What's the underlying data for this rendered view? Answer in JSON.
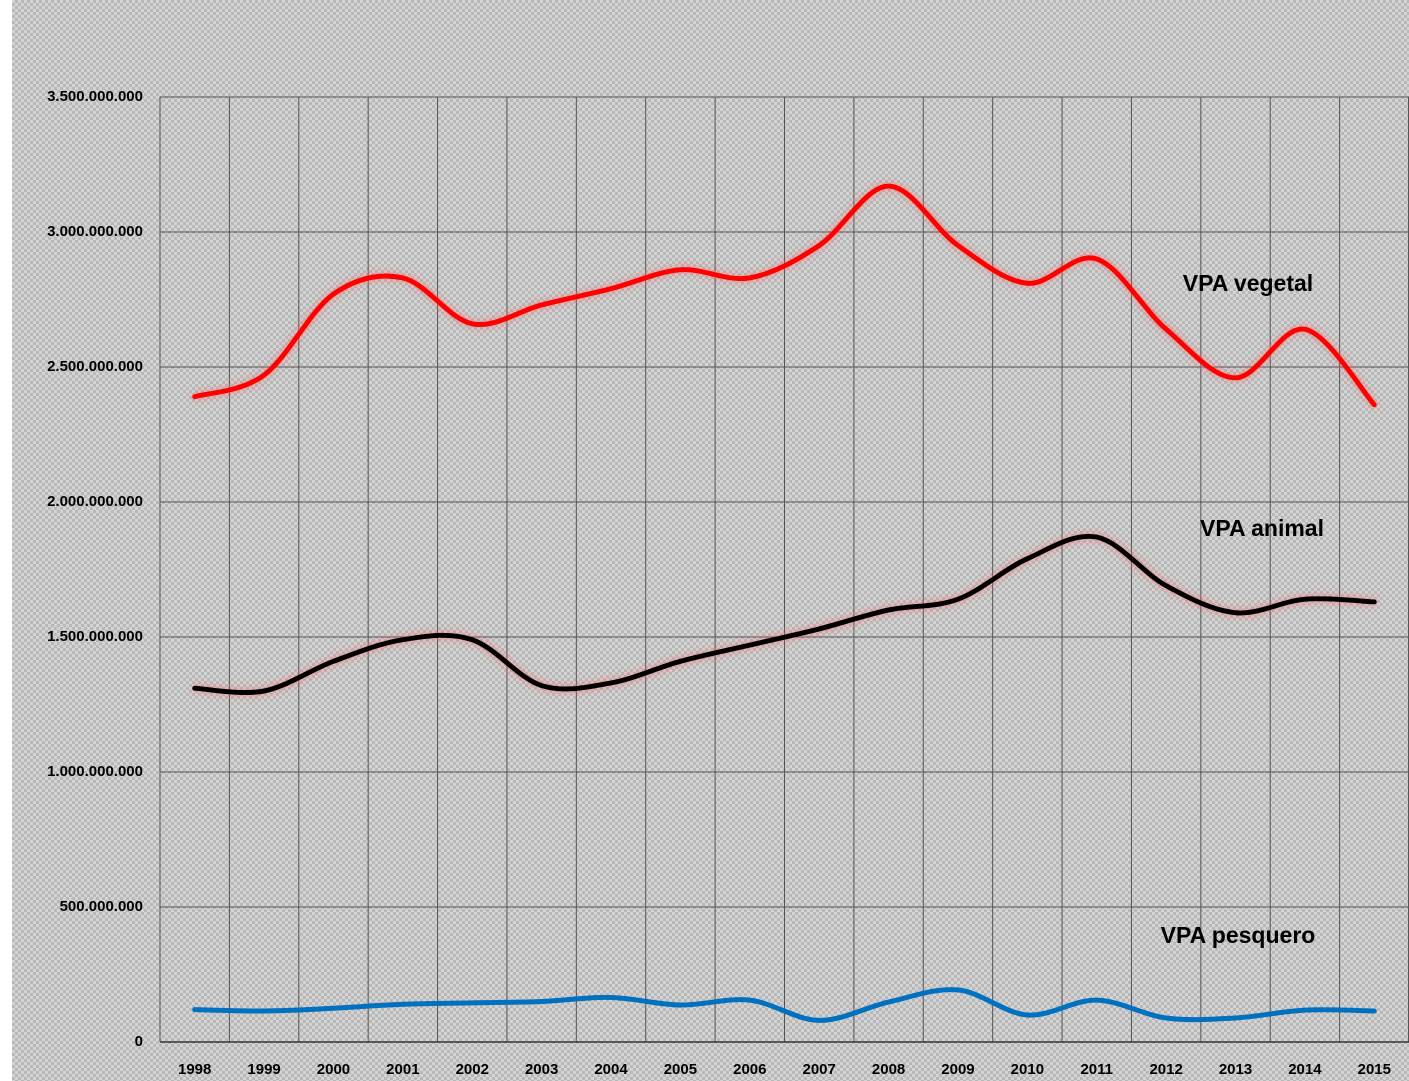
{
  "chart_data": {
    "type": "line",
    "categories": [
      "1998",
      "1999",
      "2000",
      "2001",
      "2002",
      "2003",
      "2004",
      "2005",
      "2006",
      "2007",
      "2008",
      "2009",
      "2010",
      "2011",
      "2012",
      "2013",
      "2014",
      "2015"
    ],
    "series": [
      {
        "name": "VPA vegetal",
        "color": "#ff0000",
        "values": [
          2390000000,
          2470000000,
          2770000000,
          2830000000,
          2660000000,
          2730000000,
          2790000000,
          2860000000,
          2830000000,
          2950000000,
          3170000000,
          2950000000,
          2810000000,
          2900000000,
          2640000000,
          2460000000,
          2640000000,
          2360000000
        ]
      },
      {
        "name": "VPA animal",
        "color": "#000000",
        "values": [
          1310000000,
          1300000000,
          1410000000,
          1490000000,
          1490000000,
          1320000000,
          1330000000,
          1410000000,
          1470000000,
          1530000000,
          1600000000,
          1640000000,
          1790000000,
          1870000000,
          1690000000,
          1590000000,
          1640000000,
          1630000000
        ]
      },
      {
        "name": "VPA pesquero",
        "color": "#0070c0",
        "values": [
          120000000,
          115000000,
          125000000,
          140000000,
          145000000,
          150000000,
          165000000,
          137000000,
          155000000,
          80000000,
          148000000,
          193000000,
          100000000,
          155000000,
          89000000,
          89000000,
          118000000,
          115000000
        ]
      }
    ],
    "ylim": [
      0,
      3500000000
    ],
    "yticks": [
      0,
      {
        "value": 500000000,
        "label": "500.000.000"
      },
      {
        "value": 1000000000,
        "label": "1.000.000.000"
      },
      {
        "value": 1500000000,
        "label": "1.500.000.000"
      },
      {
        "value": 2000000000,
        "label": "2.000.000.000"
      },
      {
        "value": 2500000000,
        "label": "2.500.000.000"
      },
      {
        "value": 3000000000,
        "label": "3.000.000.000"
      },
      {
        "value": 3500000000,
        "label": "3.500.000.000"
      }
    ],
    "grid": true
  }
}
